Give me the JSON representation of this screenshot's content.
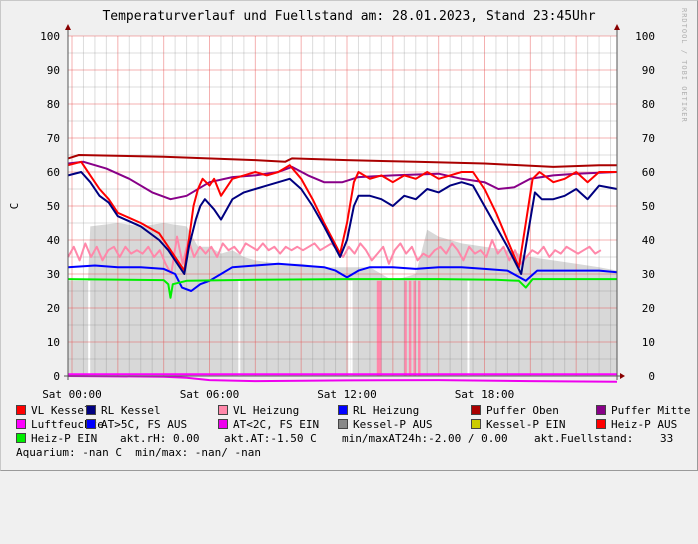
{
  "title": "Temperaturverlauf und Fuellstand am: 28.01.2023, Stand 23:45Uhr",
  "watermark": "RRDTOOL / TOBI OETIKER",
  "chart_data": {
    "type": "line",
    "title": "Temperaturverlauf und Fuellstand am: 28.01.2023, Stand 23:45Uhr",
    "ylabel": "C",
    "xlabel": "",
    "xlim_hours": [
      -0.17,
      23.78
    ],
    "ylim": [
      0,
      100
    ],
    "yticks": [
      "0",
      "10",
      "20",
      "30",
      "40",
      "50",
      "60",
      "70",
      "80",
      "90",
      "100"
    ],
    "xticks": [
      {
        "h": 0,
        "label": "Sat 00:00"
      },
      {
        "h": 6,
        "label": "Sat 06:00"
      },
      {
        "h": 12,
        "label": "Sat 12:00"
      },
      {
        "h": 18,
        "label": "Sat 18:00"
      }
    ],
    "grid": true,
    "area": {
      "name": "Kessel-P AUS",
      "color": "#d8d8d8",
      "points": [
        [
          -0.17,
          28
        ],
        [
          0.7,
          28
        ],
        [
          0.8,
          44
        ],
        [
          2,
          45
        ],
        [
          3,
          44
        ],
        [
          4,
          45
        ],
        [
          5,
          44
        ],
        [
          5.5,
          38
        ],
        [
          6,
          38
        ],
        [
          6.5,
          36
        ],
        [
          7,
          37
        ],
        [
          7.5,
          35
        ],
        [
          8,
          34
        ],
        [
          9,
          33
        ],
        [
          10,
          33
        ],
        [
          11,
          32
        ],
        [
          12,
          32
        ],
        [
          13,
          32
        ],
        [
          14,
          28
        ],
        [
          15,
          30
        ],
        [
          15.5,
          43
        ],
        [
          16,
          41
        ],
        [
          17,
          39
        ],
        [
          18,
          38
        ],
        [
          19,
          37
        ],
        [
          20,
          35
        ],
        [
          21,
          34
        ],
        [
          22,
          33
        ],
        [
          23,
          32
        ],
        [
          23.78,
          31
        ]
      ]
    },
    "series": [
      {
        "name": "Puffer Oben",
        "color": "#aa0000",
        "points": [
          [
            -0.17,
            64
          ],
          [
            0.3,
            65
          ],
          [
            4,
            64.5
          ],
          [
            8,
            63.5
          ],
          [
            9.3,
            63
          ],
          [
            9.6,
            64
          ],
          [
            12,
            63.5
          ],
          [
            15,
            63
          ],
          [
            18,
            62.5
          ],
          [
            21,
            61.5
          ],
          [
            23,
            62
          ],
          [
            23.78,
            62
          ]
        ]
      },
      {
        "name": "Puffer Mitte",
        "color": "#880088",
        "points": [
          [
            -0.17,
            62.5
          ],
          [
            0.5,
            63
          ],
          [
            1.5,
            61
          ],
          [
            2.5,
            58
          ],
          [
            3.5,
            54
          ],
          [
            4.3,
            52
          ],
          [
            5,
            53
          ],
          [
            6,
            57
          ],
          [
            7,
            58.5
          ],
          [
            8,
            59
          ],
          [
            9,
            60
          ],
          [
            9.6,
            61.5
          ],
          [
            10.3,
            59
          ],
          [
            11,
            57
          ],
          [
            11.8,
            57
          ],
          [
            12.5,
            58.5
          ],
          [
            14,
            59
          ],
          [
            16,
            59.5
          ],
          [
            17,
            58
          ],
          [
            18,
            57
          ],
          [
            18.6,
            55
          ],
          [
            19.3,
            55.5
          ],
          [
            20,
            58
          ],
          [
            21,
            59
          ],
          [
            22,
            59.5
          ],
          [
            23.78,
            60
          ]
        ]
      },
      {
        "name": "VL Kessel",
        "color": "#ff0000",
        "points": [
          [
            -0.17,
            62
          ],
          [
            0.4,
            63
          ],
          [
            0.8,
            59
          ],
          [
            1.2,
            55
          ],
          [
            1.6,
            52
          ],
          [
            2,
            48
          ],
          [
            3,
            45
          ],
          [
            3.8,
            42
          ],
          [
            4.2,
            38
          ],
          [
            4.6,
            34
          ],
          [
            4.9,
            31
          ],
          [
            5.1,
            40
          ],
          [
            5.3,
            50
          ],
          [
            5.5,
            55
          ],
          [
            5.7,
            58
          ],
          [
            6,
            56
          ],
          [
            6.2,
            58
          ],
          [
            6.5,
            53
          ],
          [
            7,
            58
          ],
          [
            7.5,
            59
          ],
          [
            8,
            60
          ],
          [
            8.5,
            59
          ],
          [
            9,
            60
          ],
          [
            9.5,
            62
          ],
          [
            10,
            58
          ],
          [
            10.5,
            52
          ],
          [
            11,
            45
          ],
          [
            11.7,
            36
          ],
          [
            12,
            45
          ],
          [
            12.3,
            57
          ],
          [
            12.5,
            60
          ],
          [
            13,
            58
          ],
          [
            13.5,
            59
          ],
          [
            14,
            57
          ],
          [
            14.5,
            59
          ],
          [
            15,
            58
          ],
          [
            15.5,
            60
          ],
          [
            16,
            58
          ],
          [
            16.5,
            59
          ],
          [
            17,
            60
          ],
          [
            17.5,
            60
          ],
          [
            18,
            55
          ],
          [
            18.5,
            48
          ],
          [
            19,
            40
          ],
          [
            19.5,
            32
          ],
          [
            19.8,
            45
          ],
          [
            20.1,
            58
          ],
          [
            20.4,
            60
          ],
          [
            21,
            57
          ],
          [
            21.5,
            58
          ],
          [
            22,
            60
          ],
          [
            22.5,
            57
          ],
          [
            23,
            60
          ],
          [
            23.78,
            60
          ]
        ]
      },
      {
        "name": "RL Kessel",
        "color": "#000080",
        "points": [
          [
            -0.17,
            59
          ],
          [
            0.4,
            60
          ],
          [
            0.8,
            57
          ],
          [
            1.2,
            53
          ],
          [
            1.6,
            51
          ],
          [
            2,
            47
          ],
          [
            3,
            44
          ],
          [
            3.8,
            40
          ],
          [
            4.2,
            37
          ],
          [
            4.6,
            33
          ],
          [
            4.9,
            30
          ],
          [
            5.1,
            38
          ],
          [
            5.4,
            46
          ],
          [
            5.6,
            50
          ],
          [
            5.8,
            52
          ],
          [
            6.2,
            49
          ],
          [
            6.5,
            46
          ],
          [
            7,
            52
          ],
          [
            7.5,
            54
          ],
          [
            8,
            55
          ],
          [
            8.5,
            56
          ],
          [
            9,
            57
          ],
          [
            9.5,
            58
          ],
          [
            10,
            55
          ],
          [
            10.5,
            50
          ],
          [
            11,
            44
          ],
          [
            11.7,
            35
          ],
          [
            12,
            40
          ],
          [
            12.3,
            50
          ],
          [
            12.5,
            53
          ],
          [
            13,
            53
          ],
          [
            13.5,
            52
          ],
          [
            14,
            50
          ],
          [
            14.5,
            53
          ],
          [
            15,
            52
          ],
          [
            15.5,
            55
          ],
          [
            16,
            54
          ],
          [
            16.5,
            56
          ],
          [
            17,
            57
          ],
          [
            17.5,
            56
          ],
          [
            18,
            50
          ],
          [
            18.5,
            44
          ],
          [
            19,
            38
          ],
          [
            19.6,
            30
          ],
          [
            19.9,
            42
          ],
          [
            20.2,
            54
          ],
          [
            20.5,
            52
          ],
          [
            21,
            52
          ],
          [
            21.5,
            53
          ],
          [
            22,
            55
          ],
          [
            22.5,
            52
          ],
          [
            23,
            56
          ],
          [
            23.78,
            55
          ]
        ]
      },
      {
        "name": "RL Heizung",
        "color": "#0000ff",
        "points": [
          [
            -0.17,
            32
          ],
          [
            1,
            32.5
          ],
          [
            2,
            32
          ],
          [
            3,
            32
          ],
          [
            4,
            31.5
          ],
          [
            4.5,
            30
          ],
          [
            4.8,
            26
          ],
          [
            5.2,
            25
          ],
          [
            5.6,
            27
          ],
          [
            6,
            28
          ],
          [
            6.5,
            30
          ],
          [
            7,
            32
          ],
          [
            8,
            32.5
          ],
          [
            9,
            33
          ],
          [
            10,
            32.5
          ],
          [
            11,
            32
          ],
          [
            11.5,
            31
          ],
          [
            12,
            29
          ],
          [
            12.5,
            31
          ],
          [
            13,
            32
          ],
          [
            14,
            32
          ],
          [
            15,
            31.5
          ],
          [
            16,
            32
          ],
          [
            17,
            32
          ],
          [
            18,
            31.5
          ],
          [
            19,
            31
          ],
          [
            19.8,
            28
          ],
          [
            20.3,
            31
          ],
          [
            21,
            31
          ],
          [
            22,
            31
          ],
          [
            23,
            31
          ],
          [
            23.78,
            30.5
          ]
        ]
      },
      {
        "name": "Heiz-P EIN",
        "color": "#00ee00",
        "points": [
          [
            -0.17,
            28.5
          ],
          [
            4,
            28.2
          ],
          [
            4.2,
            27
          ],
          [
            4.3,
            23
          ],
          [
            4.4,
            27
          ],
          [
            5,
            28
          ],
          [
            8,
            28.3
          ],
          [
            12,
            28.5
          ],
          [
            16,
            28.5
          ],
          [
            18.5,
            28.3
          ],
          [
            19.5,
            28
          ],
          [
            19.8,
            26
          ],
          [
            20.1,
            28.5
          ],
          [
            23.78,
            28.5
          ]
        ]
      },
      {
        "name": "Luftfeuchte",
        "color": "#ff00ff",
        "points": [
          [
            -0.17,
            0.5
          ],
          [
            23.78,
            0.5
          ]
        ]
      },
      {
        "name": "AT<2C, FS EIN",
        "color": "#ee00ee",
        "points": [
          [
            -0.17,
            0
          ],
          [
            4,
            -0.2
          ],
          [
            5,
            -0.5
          ],
          [
            6,
            -1.2
          ],
          [
            8,
            -1.5
          ],
          [
            12,
            -1.3
          ],
          [
            16,
            -1.2
          ],
          [
            20,
            -1.5
          ],
          [
            23.78,
            -1.7
          ]
        ]
      }
    ],
    "vl_heizung": {
      "name": "VL Heizung",
      "color": "#ff88aa",
      "start_h": -0.17,
      "step_h": 0.25,
      "values": [
        35,
        38,
        34,
        39,
        35,
        38,
        34,
        37,
        38,
        35,
        38,
        36,
        37,
        36,
        38,
        35,
        37,
        33,
        30,
        41,
        33,
        40,
        35,
        38,
        36,
        38,
        35,
        39,
        37,
        38,
        36,
        39,
        38,
        37,
        39,
        37,
        38,
        36,
        38,
        37,
        38,
        37,
        38,
        39,
        37,
        38,
        39,
        37,
        35,
        38,
        36,
        39,
        37,
        34,
        36,
        38,
        33,
        37,
        39,
        36,
        38,
        34,
        36,
        35,
        37,
        38,
        36,
        39,
        37,
        34,
        38,
        36,
        37,
        35,
        40,
        36,
        38,
        34,
        37,
        33,
        35,
        37,
        36,
        38,
        35,
        37,
        36,
        38,
        37,
        36,
        37,
        38,
        36,
        37
      ],
      "bars": [
        13.3,
        13.4,
        14.5,
        14.7,
        14.9,
        15.1
      ]
    }
  },
  "legend": {
    "rows": [
      [
        {
          "label": "VL Kessel",
          "color": "#ff0000"
        },
        {
          "label": "RL Kessel",
          "color": "#000080"
        },
        {
          "label": "VL Heizung",
          "color": "#ff88aa"
        },
        {
          "label": "RL Heizung",
          "color": "#0000ff"
        },
        {
          "label": "Puffer Oben",
          "color": "#aa0000"
        },
        {
          "label": "Puffer Mitte",
          "color": "#880088"
        }
      ],
      [
        {
          "label": "Luftfeuchte",
          "color": "#ff00ff"
        },
        {
          "label": "AT>5C, FS AUS",
          "color": "#0000ff"
        },
        {
          "label": "AT<2C, FS EIN",
          "color": "#ee00ee"
        },
        {
          "label": "Kessel-P AUS",
          "color": "#888888"
        },
        {
          "label": "Kessel-P EIN",
          "color": "#cccc00"
        },
        {
          "label": "Heiz-P AUS",
          "color": "#ff0000"
        }
      ]
    ],
    "heiz_p_ein": {
      "label": "Heiz-P EIN",
      "color": "#00ee00"
    },
    "stats": {
      "rh": "akt.rH: 0.00",
      "at": "akt.AT:-1.50 C",
      "minmax": "min/maxAT24h:-2.00 / 0.00",
      "fuell_label": "akt.Fuellstand:",
      "fuell_value": "33"
    },
    "aquarium": "Aquarium: -nan C  min/max: -nan/ -nan"
  }
}
